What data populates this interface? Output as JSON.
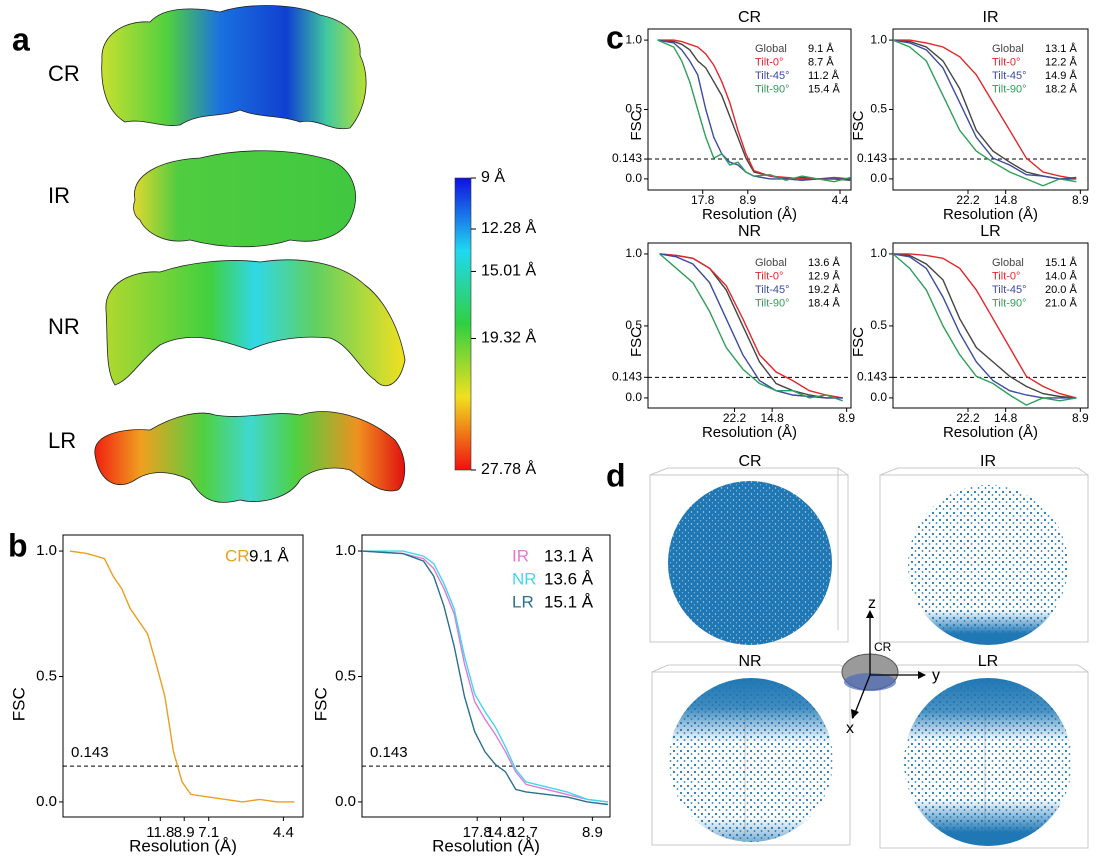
{
  "panel_labels": [
    "a",
    "b",
    "c",
    "d"
  ],
  "panel_a": {
    "maps": [
      "CR",
      "IR",
      "NR",
      "LR"
    ],
    "colorbar": {
      "ylim": [
        9,
        27.78
      ],
      "ticks": [
        {
          "value": 9,
          "label": "9 Å"
        },
        {
          "value": 12.28,
          "label": "12.28 Å"
        },
        {
          "value": 15.01,
          "label": "15.01 Å"
        },
        {
          "value": 19.32,
          "label": "19.32 Å"
        },
        {
          "value": 27.78,
          "label": "27.78 Å"
        }
      ],
      "colormap": [
        "#1010e0",
        "#20d8f0",
        "#30d040",
        "#f0e020",
        "#f01010"
      ]
    }
  },
  "chart_data": [
    {
      "type": "line",
      "x_label": "Resolution (Å)",
      "y_label": "FSC",
      "legend": "top-right",
      "threshold": 0.143,
      "xlim": [
        -0.028,
        0.25
      ],
      "ylim": [
        -0.06,
        1.064
      ],
      "xticks": [
        {
          "value": 0.0847,
          "label": "11.8"
        },
        {
          "value": 0.1124,
          "label": "8.9"
        },
        {
          "value": 0.1408,
          "label": "7.1"
        },
        {
          "value": 0.2273,
          "label": "4.4"
        }
      ],
      "yticks": [
        {
          "value": 0,
          "label": "0.0"
        },
        0.5,
        {
          "value": 1,
          "label": "1.0"
        }
      ],
      "x": [
        -0.02,
        0,
        0.02,
        0.03,
        0.04,
        0.05,
        0.06,
        0.07,
        0.08,
        0.09,
        0.1,
        0.11,
        0.12,
        0.14,
        0.16,
        0.18,
        0.2,
        0.22,
        0.24
      ],
      "series": [
        {
          "name": "CR",
          "label": "9.1 Å",
          "color": "#e8a020",
          "values": [
            1,
            0.99,
            0.97,
            0.9,
            0.85,
            0.77,
            0.72,
            0.67,
            0.55,
            0.42,
            0.2,
            0.08,
            0.03,
            0.02,
            0.01,
            0,
            0.01,
            0,
            0
          ]
        }
      ]
    },
    {
      "type": "line",
      "x_label": "Resolution (Å)",
      "y_label": "FSC",
      "legend": "top-right",
      "threshold": 0.143,
      "xlim": [
        0,
        0.121
      ],
      "ylim": [
        -0.06,
        1.064
      ],
      "xticks": [
        {
          "value": 0.0562,
          "label": "17.8"
        },
        {
          "value": 0.0676,
          "label": "14.8"
        },
        {
          "value": 0.0787,
          "label": "12.7"
        },
        {
          "value": 0.1124,
          "label": "8.9"
        }
      ],
      "yticks": [
        {
          "value": 0,
          "label": "0.0"
        },
        0.5,
        {
          "value": 1,
          "label": "1.0"
        }
      ],
      "x": [
        0,
        0.02,
        0.03,
        0.035,
        0.04,
        0.045,
        0.05,
        0.055,
        0.06,
        0.065,
        0.07,
        0.075,
        0.08,
        0.09,
        0.1,
        0.11,
        0.12
      ],
      "series": [
        {
          "name": "IR",
          "label": "13.1 Å",
          "color": "#e07ad8",
          "values": [
            1,
            0.99,
            0.97,
            0.93,
            0.85,
            0.75,
            0.55,
            0.4,
            0.33,
            0.27,
            0.2,
            0.12,
            0.07,
            0.05,
            0.03,
            0.01,
            0
          ]
        },
        {
          "name": "NR",
          "label": "13.6 Å",
          "color": "#40d8ee",
          "values": [
            1,
            1,
            0.98,
            0.95,
            0.87,
            0.77,
            0.58,
            0.43,
            0.36,
            0.3,
            0.22,
            0.13,
            0.08,
            0.06,
            0.04,
            0.01,
            0
          ]
        },
        {
          "name": "LR",
          "label": "15.1 Å",
          "color": "#2b6f8f",
          "values": [
            1,
            0.99,
            0.96,
            0.9,
            0.78,
            0.62,
            0.42,
            0.28,
            0.2,
            0.15,
            0.12,
            0.05,
            0.04,
            0.03,
            0.02,
            0,
            -0.01
          ]
        }
      ]
    },
    {
      "type": "line",
      "title": "CR",
      "x_label": "Resolution (Å)",
      "y_label": "FSC",
      "legend": "top-right",
      "threshold": 0.143,
      "xlim": [
        -0.012,
        0.241
      ],
      "ylim": [
        -0.08,
        1.08
      ],
      "xticks": [
        {
          "value": 0.0562,
          "label": "17.8"
        },
        {
          "value": 0.1124,
          "label": "8.9"
        },
        {
          "value": 0.2273,
          "label": "4.4"
        }
      ],
      "yticks": [
        {
          "value": 0,
          "label": "0.0"
        },
        0.143,
        0.5,
        {
          "value": 1,
          "label": "1.0"
        }
      ],
      "x": [
        0,
        0.02,
        0.03,
        0.04,
        0.05,
        0.06,
        0.07,
        0.08,
        0.09,
        0.1,
        0.11,
        0.12,
        0.14,
        0.16,
        0.18,
        0.2,
        0.22,
        0.24
      ],
      "series": [
        {
          "name": "Global",
          "label": "9.1 Å",
          "color": "#444444",
          "values": [
            1,
            0.99,
            0.97,
            0.93,
            0.85,
            0.8,
            0.7,
            0.6,
            0.45,
            0.3,
            0.15,
            0.05,
            0.02,
            0,
            0.01,
            0,
            0,
            -0.01
          ]
        },
        {
          "name": "Tilt-0°",
          "label": "8.7 Å",
          "color": "#e3262b",
          "values": [
            1,
            1,
            0.99,
            0.97,
            0.95,
            0.9,
            0.82,
            0.7,
            0.55,
            0.35,
            0.18,
            0.06,
            0.02,
            0.01,
            0,
            0,
            0.01,
            0
          ]
        },
        {
          "name": "Tilt-45°",
          "label": "11.2 Å",
          "color": "#3b4ba0",
          "values": [
            1,
            0.98,
            0.93,
            0.85,
            0.75,
            0.5,
            0.3,
            0.18,
            0.12,
            0.1,
            0.05,
            0.02,
            0,
            0,
            -0.01,
            0,
            0,
            0
          ]
        },
        {
          "name": "Tilt-90°",
          "label": "15.4 Å",
          "color": "#2f9e5a",
          "values": [
            1,
            0.95,
            0.85,
            0.7,
            0.5,
            0.3,
            0.15,
            0.18,
            0.1,
            0.12,
            0.05,
            0.02,
            0.03,
            -0.01,
            0.02,
            0,
            -0.02,
            0.01
          ]
        }
      ]
    },
    {
      "type": "line",
      "title": "IR",
      "x_label": "Resolution (Å)",
      "y_label": "FSC",
      "legend": "top-right",
      "threshold": 0.143,
      "xlim": [
        0,
        0.117
      ],
      "ylim": [
        -0.08,
        1.08
      ],
      "xticks": [
        {
          "value": 0.045,
          "label": "22.2"
        },
        {
          "value": 0.0676,
          "label": "14.8"
        },
        {
          "value": 0.1124,
          "label": "8.9"
        }
      ],
      "yticks": [
        {
          "value": 0,
          "label": "0.0"
        },
        0.143,
        0.5,
        {
          "value": 1,
          "label": "1.0"
        }
      ],
      "x": [
        0,
        0.01,
        0.02,
        0.03,
        0.04,
        0.05,
        0.06,
        0.07,
        0.08,
        0.09,
        0.1,
        0.11
      ],
      "series": [
        {
          "name": "Global",
          "label": "13.1 Å",
          "color": "#444444",
          "values": [
            1,
            0.99,
            0.95,
            0.85,
            0.65,
            0.35,
            0.2,
            0.12,
            0.05,
            0.02,
            0,
            0
          ]
        },
        {
          "name": "Tilt-0°",
          "label": "12.2 Å",
          "color": "#e3262b",
          "values": [
            1,
            1,
            0.98,
            0.95,
            0.88,
            0.75,
            0.55,
            0.35,
            0.15,
            0.05,
            0.02,
            0
          ]
        },
        {
          "name": "Tilt-45°",
          "label": "14.9 Å",
          "color": "#3b4ba0",
          "values": [
            1,
            0.98,
            0.93,
            0.8,
            0.55,
            0.3,
            0.15,
            0.1,
            0.03,
            0.02,
            0,
            0.01
          ]
        },
        {
          "name": "Tilt-90°",
          "label": "18.2 Å",
          "color": "#2f9e5a",
          "values": [
            1,
            0.95,
            0.85,
            0.6,
            0.35,
            0.2,
            0.12,
            0.05,
            0,
            -0.05,
            0,
            -0.02
          ]
        }
      ]
    },
    {
      "type": "line",
      "title": "NR",
      "x_label": "Resolution (Å)",
      "y_label": "FSC",
      "legend": "top-right",
      "threshold": 0.143,
      "xlim": [
        -0.007,
        0.115
      ],
      "ylim": [
        -0.07,
        1.076
      ],
      "xticks": [
        {
          "value": 0.045,
          "label": "22.2"
        },
        {
          "value": 0.0676,
          "label": "14.8"
        },
        {
          "value": 0.1124,
          "label": "8.9"
        }
      ],
      "yticks": [
        {
          "value": 0,
          "label": "0.0"
        },
        0.143,
        0.5,
        {
          "value": 1,
          "label": "1.0"
        }
      ],
      "x": [
        0,
        0.01,
        0.02,
        0.03,
        0.04,
        0.05,
        0.06,
        0.07,
        0.08,
        0.09,
        0.1,
        0.11
      ],
      "series": [
        {
          "name": "Global",
          "label": "13.6 Å",
          "color": "#444444",
          "values": [
            1,
            0.99,
            0.97,
            0.9,
            0.75,
            0.5,
            0.25,
            0.1,
            0.05,
            0.02,
            0,
            0
          ]
        },
        {
          "name": "Tilt-0°",
          "label": "12.9 Å",
          "color": "#e3262b",
          "values": [
            1,
            0.99,
            0.97,
            0.9,
            0.78,
            0.55,
            0.3,
            0.18,
            0.12,
            0.05,
            0.02,
            0
          ]
        },
        {
          "name": "Tilt-45°",
          "label": "19.2 Å",
          "color": "#3b4ba0",
          "values": [
            1,
            0.98,
            0.93,
            0.8,
            0.55,
            0.3,
            0.12,
            0.05,
            0.02,
            0.01,
            0,
            0
          ]
        },
        {
          "name": "Tilt-90°",
          "label": "18.4 Å",
          "color": "#2f9e5a",
          "values": [
            1,
            0.9,
            0.8,
            0.6,
            0.35,
            0.2,
            0.1,
            0.05,
            0.05,
            0,
            0.02,
            -0.02
          ]
        }
      ]
    },
    {
      "type": "line",
      "title": "LR",
      "x_label": "Resolution (Å)",
      "y_label": "FSC",
      "legend": "top-right",
      "threshold": 0.143,
      "xlim": [
        0,
        0.117
      ],
      "ylim": [
        -0.07,
        1.076
      ],
      "xticks": [
        {
          "value": 0.045,
          "label": "22.2"
        },
        {
          "value": 0.0676,
          "label": "14.8"
        },
        {
          "value": 0.1124,
          "label": "8.9"
        }
      ],
      "yticks": [
        {
          "value": 0,
          "label": "0.0"
        },
        0.143,
        0.5,
        {
          "value": 1,
          "label": "1.0"
        }
      ],
      "x": [
        0,
        0.01,
        0.02,
        0.03,
        0.04,
        0.05,
        0.06,
        0.07,
        0.08,
        0.09,
        0.1,
        0.11
      ],
      "series": [
        {
          "name": "Global",
          "label": "15.1 Å",
          "color": "#444444",
          "values": [
            1,
            0.99,
            0.93,
            0.82,
            0.55,
            0.35,
            0.25,
            0.15,
            0.08,
            0.03,
            0.01,
            0
          ]
        },
        {
          "name": "Tilt-0°",
          "label": "14.0 Å",
          "color": "#e3262b",
          "values": [
            1,
            1,
            0.99,
            0.97,
            0.9,
            0.75,
            0.55,
            0.35,
            0.15,
            0.08,
            0.03,
            0
          ]
        },
        {
          "name": "Tilt-45°",
          "label": "20.0 Å",
          "color": "#3b4ba0",
          "values": [
            1,
            0.98,
            0.9,
            0.7,
            0.45,
            0.25,
            0.12,
            0.05,
            0.02,
            0,
            0,
            0
          ]
        },
        {
          "name": "Tilt-90°",
          "label": "21.0 Å",
          "color": "#2f9e5a",
          "values": [
            1,
            0.9,
            0.75,
            0.5,
            0.3,
            0.15,
            0.1,
            0.02,
            -0.05,
            0,
            -0.02,
            0
          ]
        }
      ]
    }
  ],
  "panel_d": {
    "labels": [
      "CR",
      "IR",
      "NR",
      "LR"
    ],
    "axes": [
      "z",
      "y",
      "x"
    ],
    "center_label": "CR"
  }
}
